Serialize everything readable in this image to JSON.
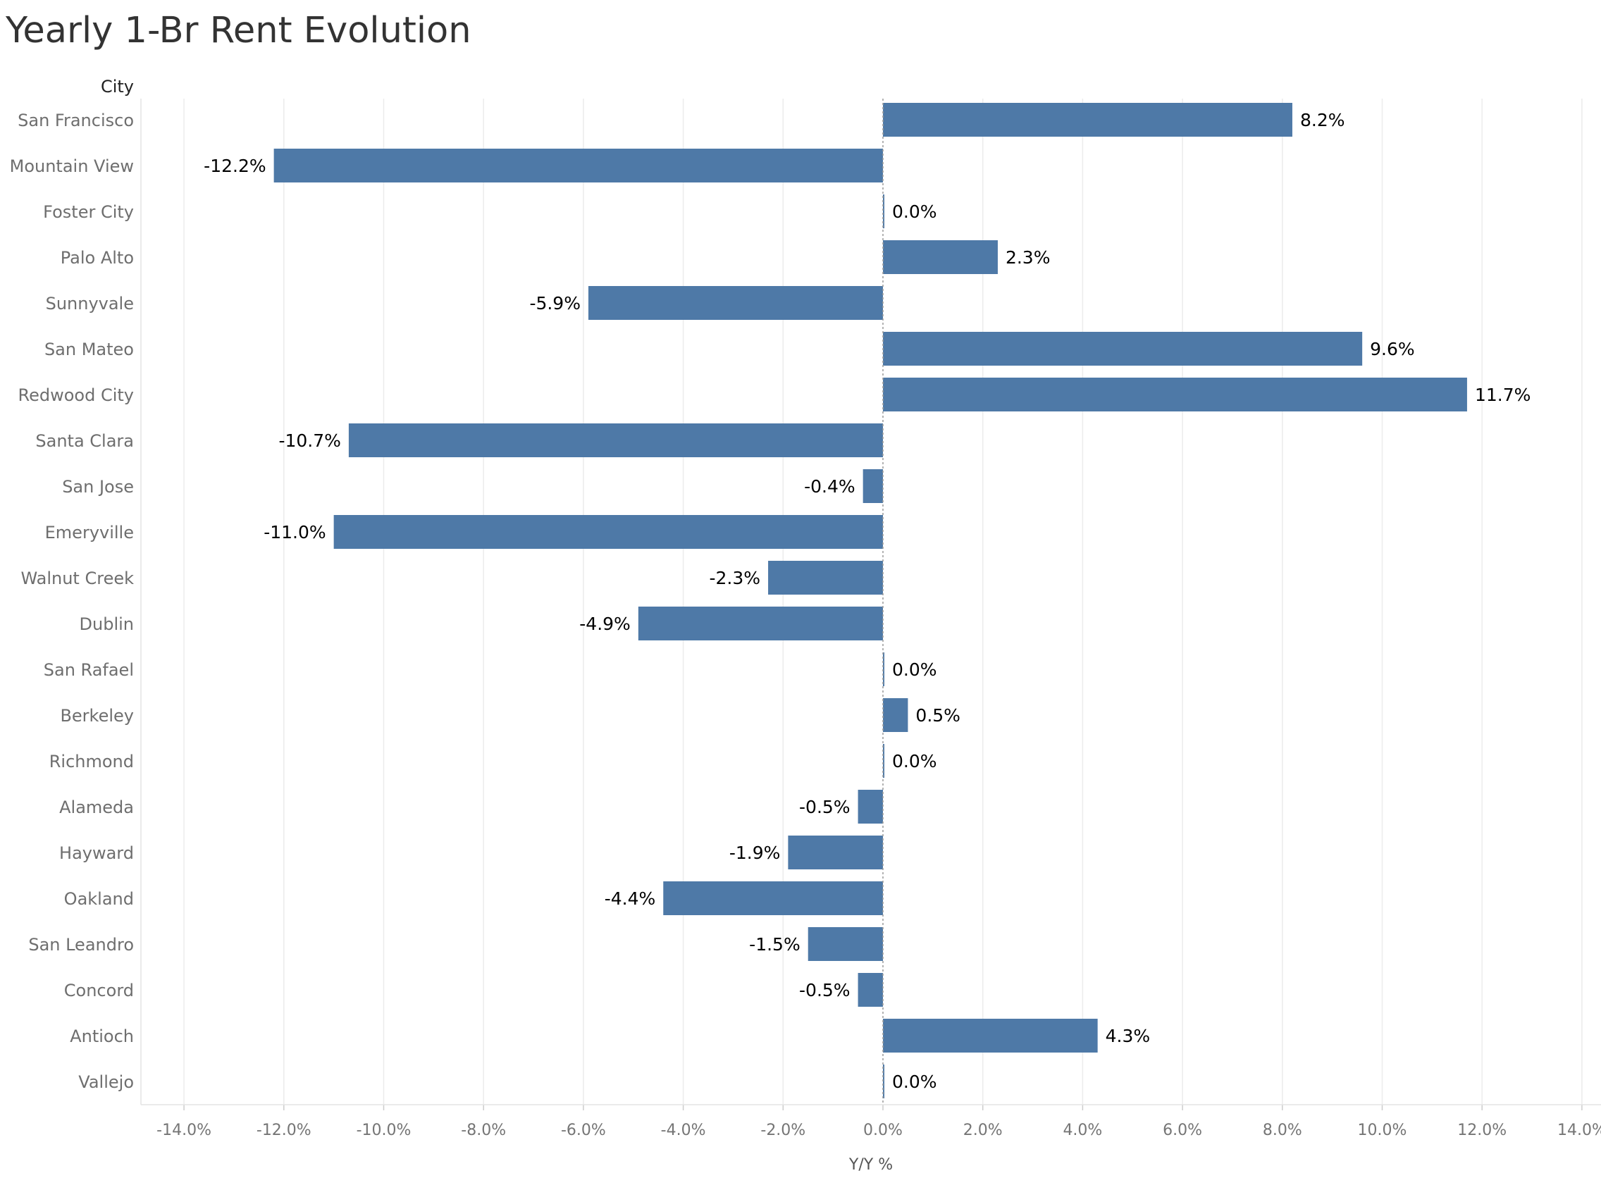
{
  "title": "Yearly 1-Br Rent Evolution",
  "chart_data": {
    "type": "bar",
    "orientation": "horizontal",
    "title": "Yearly 1-Br Rent Evolution",
    "row_header": "City",
    "xlabel": "Y/Y %",
    "ylabel": "City",
    "xlim": [
      -14,
      14
    ],
    "x_ticks": [
      -14,
      -12,
      -10,
      -8,
      -6,
      -4,
      -2,
      0,
      2,
      4,
      6,
      8,
      10,
      12,
      14
    ],
    "x_tick_labels": [
      "-14.0%",
      "-12.0%",
      "-10.0%",
      "-8.0%",
      "-6.0%",
      "-4.0%",
      "-2.0%",
      "0.0%",
      "2.0%",
      "4.0%",
      "6.0%",
      "8.0%",
      "10.0%",
      "12.0%",
      "14.0%"
    ],
    "grid": "vertical",
    "bar_color": "#4e79a7",
    "categories": [
      "San Francisco",
      "Mountain View",
      "Foster City",
      "Palo Alto",
      "Sunnyvale",
      "San Mateo",
      "Redwood City",
      "Santa Clara",
      "San Jose",
      "Emeryville",
      "Walnut Creek",
      "Dublin",
      "San Rafael",
      "Berkeley",
      "Richmond",
      "Alameda",
      "Hayward",
      "Oakland",
      "San Leandro",
      "Concord",
      "Antioch",
      "Vallejo"
    ],
    "values": [
      8.2,
      -12.2,
      0.0,
      2.3,
      -5.9,
      9.6,
      11.7,
      -10.7,
      -0.4,
      -11.0,
      -2.3,
      -4.9,
      0.0,
      0.5,
      0.0,
      -0.5,
      -1.9,
      -4.4,
      -1.5,
      -0.5,
      4.3,
      0.0
    ],
    "value_labels": [
      "8.2%",
      "-12.2%",
      "0.0%",
      "2.3%",
      "-5.9%",
      "9.6%",
      "11.7%",
      "-10.7%",
      "-0.4%",
      "-11.0%",
      "-2.3%",
      "-4.9%",
      "0.0%",
      "0.5%",
      "0.0%",
      "-0.5%",
      "-1.9%",
      "-4.4%",
      "-1.5%",
      "-0.5%",
      "4.3%",
      "0.0%"
    ]
  }
}
